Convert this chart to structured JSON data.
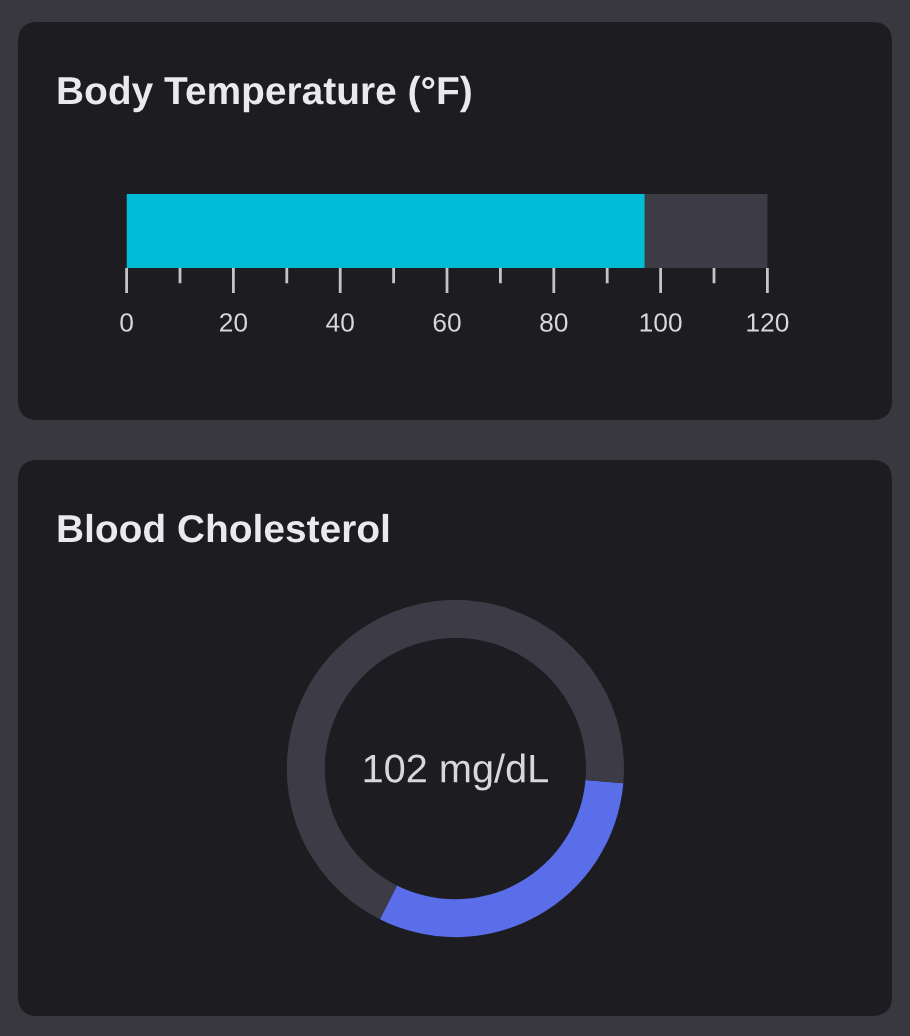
{
  "chart_data": [
    {
      "type": "bar",
      "orientation": "horizontal",
      "title": "Body Temperature (°F)",
      "categories": [
        null
      ],
      "values": [
        97
      ],
      "color": "#00bcd6",
      "xlim": [
        0,
        120
      ],
      "xticks": [
        0,
        {
          "value": 10,
          "label": null
        },
        20,
        {
          "value": 30,
          "label": null
        },
        40,
        {
          "value": 50,
          "label": null
        },
        60,
        {
          "value": 70,
          "label": null
        },
        80,
        {
          "value": 90,
          "label": null
        },
        100,
        {
          "value": 110,
          "label": null
        },
        120
      ],
      "bands": [
        {
          "axis": "x",
          "from": 0,
          "to": 120,
          "color": "#3d3c46"
        }
      ],
      "tick_labels": "x"
    },
    {
      "type": "donut",
      "title": "Blood Cholesterol",
      "categories": [
        null,
        null
      ],
      "values": [
        31,
        69
      ],
      "colors": [
        "#5b6ee9",
        "#3d3c46"
      ],
      "annotations": [
        "102 mg/dL"
      ]
    }
  ]
}
